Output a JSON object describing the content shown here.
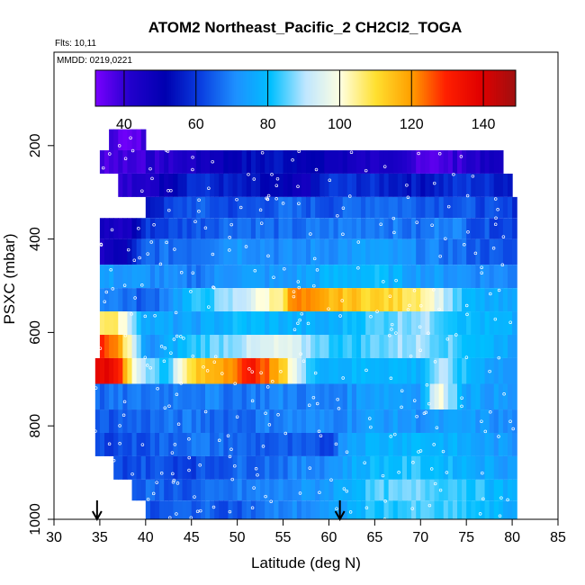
{
  "chart_data": {
    "type": "heatmap",
    "title": "ATOM2 Northeast_Pacific_2 CH2Cl2_TOGA",
    "annotations": [
      "Flts: 10,11",
      "MMDD: 0219,0221"
    ],
    "xlabel": "Latitude (deg N)",
    "ylabel": "PSXC (mbar)",
    "xlim": [
      30,
      85
    ],
    "ylim": [
      1000,
      0
    ],
    "x_ticks": [
      30,
      35,
      40,
      45,
      50,
      55,
      60,
      65,
      70,
      75,
      80,
      85
    ],
    "y_ticks": [
      200,
      400,
      600,
      800,
      1000
    ],
    "colorbar": {
      "range": [
        32,
        149
      ],
      "ticks": [
        40,
        60,
        80,
        100,
        120,
        140
      ],
      "colors": [
        "#7a00ff",
        "#2200cc",
        "#0000b0",
        "#0a3ee0",
        "#1e90ff",
        "#00bfff",
        "#bfe6ff",
        "#ffffe0",
        "#ffe030",
        "#ffa000",
        "#ff2000",
        "#e00000",
        "#a01010"
      ]
    },
    "arrows_lat": [
      34.7,
      61.2
    ],
    "bands": [
      {
        "pmin": 165,
        "pmax": 210,
        "lat_start": 36,
        "lat_end": 40,
        "stops": [
          [
            36,
            40
          ],
          [
            38,
            34
          ],
          [
            40,
            38
          ]
        ]
      },
      {
        "pmin": 210,
        "pmax": 260,
        "lat_start": 35,
        "lat_end": 79,
        "stops": [
          [
            35,
            38
          ],
          [
            40,
            40
          ],
          [
            45,
            44
          ],
          [
            50,
            52
          ],
          [
            55,
            55
          ],
          [
            60,
            48
          ],
          [
            65,
            44
          ],
          [
            69,
            40
          ],
          [
            72,
            36
          ],
          [
            75,
            42
          ],
          [
            79,
            46
          ]
        ]
      },
      {
        "pmin": 260,
        "pmax": 310,
        "lat_start": 37,
        "lat_end": 80,
        "stops": [
          [
            37,
            40
          ],
          [
            40,
            42
          ],
          [
            45,
            60
          ],
          [
            50,
            55
          ],
          [
            55,
            50
          ],
          [
            57,
            45
          ],
          [
            60,
            60
          ],
          [
            65,
            58
          ],
          [
            70,
            55
          ],
          [
            75,
            60
          ],
          [
            80,
            56
          ]
        ]
      },
      {
        "pmin": 310,
        "pmax": 355,
        "lat_start": 40,
        "lat_end": 80.5,
        "stops": [
          [
            40,
            55
          ],
          [
            45,
            65
          ],
          [
            50,
            62
          ],
          [
            55,
            66
          ],
          [
            60,
            64
          ],
          [
            65,
            68
          ],
          [
            70,
            66
          ],
          [
            75,
            64
          ],
          [
            80,
            60
          ]
        ]
      },
      {
        "pmin": 355,
        "pmax": 400,
        "lat_start": 35,
        "lat_end": 80.5,
        "stops": [
          [
            35,
            46
          ],
          [
            38,
            44
          ],
          [
            40,
            60
          ],
          [
            45,
            64
          ],
          [
            50,
            68
          ],
          [
            55,
            66
          ],
          [
            60,
            68
          ],
          [
            65,
            70
          ],
          [
            70,
            66
          ],
          [
            73,
            72
          ],
          [
            76,
            64
          ],
          [
            80,
            62
          ]
        ]
      },
      {
        "pmin": 400,
        "pmax": 455,
        "lat_start": 35,
        "lat_end": 80.5,
        "stops": [
          [
            35,
            44
          ],
          [
            38,
            50
          ],
          [
            40,
            66
          ],
          [
            45,
            68
          ],
          [
            50,
            74
          ],
          [
            55,
            70
          ],
          [
            60,
            72
          ],
          [
            65,
            74
          ],
          [
            70,
            70
          ],
          [
            75,
            66
          ],
          [
            80,
            62
          ]
        ]
      },
      {
        "pmin": 455,
        "pmax": 505,
        "lat_start": 35,
        "lat_end": 80.5,
        "stops": [
          [
            35,
            74
          ],
          [
            40,
            72
          ],
          [
            45,
            68
          ],
          [
            50,
            74
          ],
          [
            55,
            72
          ],
          [
            60,
            78
          ],
          [
            65,
            80
          ],
          [
            70,
            74
          ],
          [
            75,
            72
          ],
          [
            80,
            70
          ]
        ]
      },
      {
        "pmin": 505,
        "pmax": 555,
        "lat_start": 35,
        "lat_end": 80.5,
        "stops": [
          [
            35,
            72
          ],
          [
            40,
            64
          ],
          [
            45,
            80
          ],
          [
            50,
            90
          ],
          [
            55,
            108
          ],
          [
            56,
            122
          ],
          [
            60,
            116
          ],
          [
            65,
            112
          ],
          [
            70,
            108
          ],
          [
            75,
            78
          ],
          [
            80,
            74
          ]
        ]
      },
      {
        "pmin": 555,
        "pmax": 605,
        "lat_start": 35,
        "lat_end": 80.5,
        "stops": [
          [
            35,
            104
          ],
          [
            36,
            112
          ],
          [
            38,
            96
          ],
          [
            40,
            76
          ],
          [
            45,
            74
          ],
          [
            50,
            80
          ],
          [
            55,
            78
          ],
          [
            60,
            76
          ],
          [
            63,
            82
          ],
          [
            65,
            84
          ],
          [
            70,
            90
          ],
          [
            75,
            80
          ],
          [
            80,
            76
          ]
        ]
      },
      {
        "pmin": 605,
        "pmax": 655,
        "lat_start": 35,
        "lat_end": 80.5,
        "stops": [
          [
            35,
            128
          ],
          [
            37,
            120
          ],
          [
            39,
            90
          ],
          [
            40,
            70
          ],
          [
            45,
            82
          ],
          [
            50,
            90
          ],
          [
            55,
            96
          ],
          [
            60,
            84
          ],
          [
            63,
            82
          ],
          [
            65,
            86
          ],
          [
            70,
            90
          ],
          [
            75,
            82
          ],
          [
            80,
            76
          ]
        ]
      },
      {
        "pmin": 655,
        "pmax": 710,
        "lat_start": 34.5,
        "lat_end": 80.5,
        "stops": [
          [
            34.5,
            140
          ],
          [
            37,
            132
          ],
          [
            39,
            96
          ],
          [
            42,
            80
          ],
          [
            45,
            110
          ],
          [
            49,
            122
          ],
          [
            52,
            132
          ],
          [
            55,
            112
          ],
          [
            58,
            80
          ],
          [
            62,
            78
          ],
          [
            65,
            80
          ],
          [
            70,
            78
          ],
          [
            72,
            90
          ],
          [
            75,
            80
          ],
          [
            80,
            72
          ]
        ]
      },
      {
        "pmin": 710,
        "pmax": 765,
        "lat_start": 34.5,
        "lat_end": 80.5,
        "stops": [
          [
            34.5,
            66
          ],
          [
            40,
            68
          ],
          [
            45,
            70
          ],
          [
            50,
            68
          ],
          [
            55,
            70
          ],
          [
            60,
            68
          ],
          [
            65,
            76
          ],
          [
            70,
            74
          ],
          [
            72,
            100
          ],
          [
            75,
            76
          ],
          [
            80,
            72
          ]
        ]
      },
      {
        "pmin": 765,
        "pmax": 815,
        "lat_start": 34.5,
        "lat_end": 80.5,
        "stops": [
          [
            34.5,
            64
          ],
          [
            40,
            66
          ],
          [
            45,
            68
          ],
          [
            50,
            66
          ],
          [
            55,
            70
          ],
          [
            60,
            70
          ],
          [
            65,
            74
          ],
          [
            70,
            72
          ],
          [
            75,
            74
          ],
          [
            80,
            70
          ]
        ]
      },
      {
        "pmin": 815,
        "pmax": 865,
        "lat_start": 34.5,
        "lat_end": 80.5,
        "stops": [
          [
            34.5,
            62
          ],
          [
            40,
            64
          ],
          [
            45,
            68
          ],
          [
            50,
            66
          ],
          [
            55,
            64
          ],
          [
            60,
            62
          ],
          [
            62,
            76
          ],
          [
            65,
            78
          ],
          [
            70,
            80
          ],
          [
            75,
            76
          ],
          [
            80,
            72
          ]
        ]
      },
      {
        "pmin": 865,
        "pmax": 915,
        "lat_start": 36.5,
        "lat_end": 80.5,
        "stops": [
          [
            36.5,
            62
          ],
          [
            40,
            64
          ],
          [
            45,
            62
          ],
          [
            50,
            66
          ],
          [
            55,
            68
          ],
          [
            60,
            72
          ],
          [
            65,
            80
          ],
          [
            70,
            82
          ],
          [
            75,
            78
          ],
          [
            80,
            74
          ]
        ]
      },
      {
        "pmin": 915,
        "pmax": 960,
        "lat_start": 38.5,
        "lat_end": 80.5,
        "stops": [
          [
            38.5,
            62
          ],
          [
            40,
            66
          ],
          [
            45,
            64
          ],
          [
            50,
            68
          ],
          [
            55,
            70
          ],
          [
            60,
            74
          ],
          [
            65,
            84
          ],
          [
            70,
            86
          ],
          [
            75,
            84
          ],
          [
            80,
            76
          ]
        ]
      },
      {
        "pmin": 960,
        "pmax": 1000,
        "lat_start": 40,
        "lat_end": 80.5,
        "stops": [
          [
            40,
            62
          ],
          [
            45,
            66
          ],
          [
            50,
            64
          ],
          [
            55,
            70
          ],
          [
            60,
            72
          ],
          [
            65,
            82
          ],
          [
            70,
            84
          ],
          [
            75,
            82
          ],
          [
            80,
            76
          ]
        ]
      }
    ]
  }
}
